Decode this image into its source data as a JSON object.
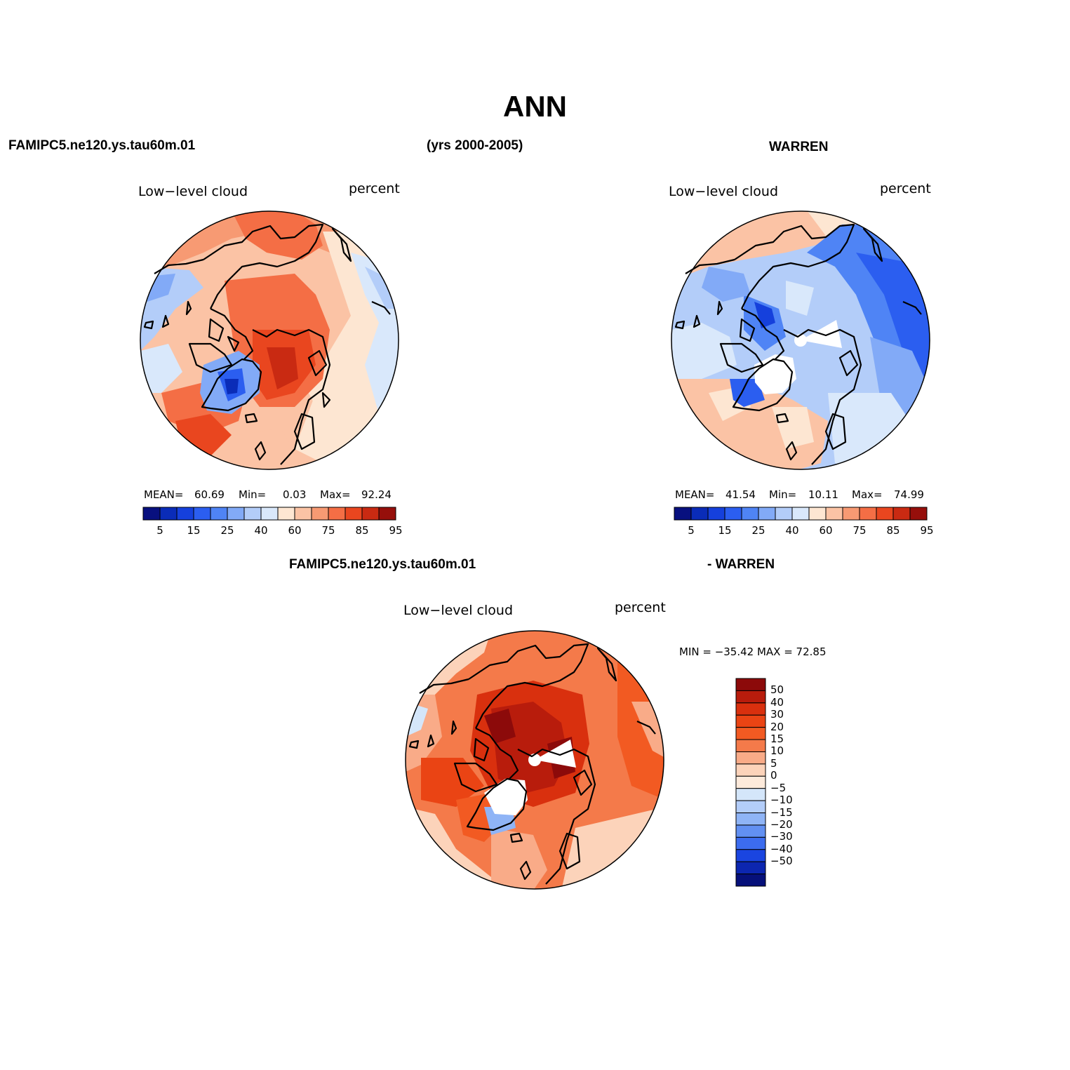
{
  "header": {
    "title": "ANN",
    "model_left": "FAMIPC5.ne120.ys.tau60m.01",
    "years": "(yrs 2000-2005)",
    "obs_right": "WARREN",
    "diff_model": "FAMIPC5.ne120.ys.tau60m.01",
    "diff_obs": "- WARREN"
  },
  "panels": {
    "model": {
      "variable": "Low−level cloud",
      "units": "percent",
      "stats": {
        "mean_label": "MEAN=",
        "mean": "60.69",
        "min_label": "Min=",
        "min": "0.03",
        "max_label": "Max=",
        "max": "92.24"
      },
      "colorbar_ticks": [
        "5",
        "15",
        "25",
        "40",
        "60",
        "75",
        "85",
        "95"
      ]
    },
    "obs": {
      "variable": "Low−level cloud",
      "units": "percent",
      "stats": {
        "mean_label": "MEAN=",
        "mean": "41.54",
        "min_label": "Min=",
        "min": "10.11",
        "max_label": "Max=",
        "max": "74.99"
      },
      "colorbar_ticks": [
        "5",
        "15",
        "25",
        "40",
        "60",
        "75",
        "85",
        "95"
      ]
    },
    "diff": {
      "variable": "Low−level cloud",
      "units": "percent",
      "minmax": "MIN = −35.42  MAX =   72.85",
      "colorbar_ticks": [
        "50",
        "40",
        "30",
        "20",
        "15",
        "10",
        "5",
        "0",
        "−5",
        "−10",
        "−15",
        "−20",
        "−30",
        "−40",
        "−50"
      ]
    }
  },
  "colors": {
    "abs_scale": [
      "#08107f",
      "#0a2cb8",
      "#1540dc",
      "#2b5ef0",
      "#4f84f5",
      "#82aaf7",
      "#b3cdf9",
      "#d9e8fb",
      "#fde6d2",
      "#fbc3a5",
      "#f79a73",
      "#f46e45",
      "#e9461f",
      "#c92a12",
      "#960f0b"
    ],
    "diff_scale_top_to_bottom": [
      "#8c0a0a",
      "#b81c0c",
      "#d9300e",
      "#ea4414",
      "#f25a22",
      "#f47a4a",
      "#f9ab88",
      "#fcd3ba",
      "#fdeadb",
      "#d4e6fa",
      "#b3cdf9",
      "#8fb4f6",
      "#6290f2",
      "#3c6cef",
      "#1a45e0",
      "#0c26b0",
      "#06107a"
    ],
    "ocean_light": "#fde3cf",
    "missing": "#ffffff",
    "coast": "#000000"
  }
}
